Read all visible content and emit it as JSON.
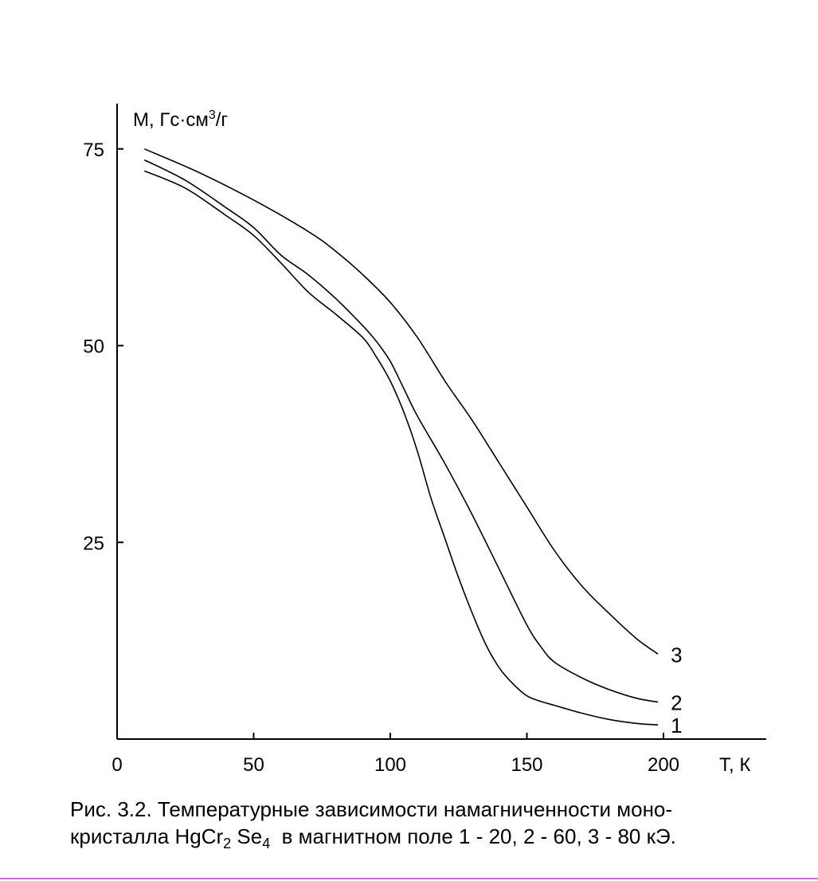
{
  "chart_data": {
    "type": "line",
    "ylabel_prefix": "M, Гс·см",
    "ylabel_exp": "3",
    "ylabel_suffix": "/г",
    "xlabel": "T, К",
    "xlim": [
      0,
      237
    ],
    "ylim": [
      0,
      80
    ],
    "x_ticks": [
      0,
      50,
      100,
      150,
      200
    ],
    "y_ticks": [
      25,
      50,
      75
    ],
    "series": [
      {
        "name": "1",
        "x": [
          10,
          25,
          40,
          50,
          60,
          70,
          80,
          90,
          95,
          100,
          105,
          110,
          115,
          120,
          125,
          130,
          135,
          140,
          145,
          150,
          155,
          160,
          170,
          180,
          190,
          198
        ],
        "y": [
          72.2,
          70.0,
          66.5,
          64.0,
          60.5,
          56.8,
          54.0,
          51.0,
          48.5,
          45.5,
          41.5,
          36.5,
          30.5,
          25.5,
          20.5,
          16.0,
          12.0,
          9.0,
          7.0,
          5.5,
          4.8,
          4.3,
          3.3,
          2.5,
          2.0,
          1.8
        ]
      },
      {
        "name": "2",
        "x": [
          10,
          25,
          40,
          50,
          60,
          70,
          80,
          90,
          95,
          100,
          105,
          110,
          120,
          130,
          140,
          150,
          155,
          160,
          170,
          180,
          190,
          198
        ],
        "y": [
          73.6,
          71.0,
          67.5,
          65.0,
          61.5,
          59.0,
          56.0,
          52.5,
          50.5,
          48.0,
          44.5,
          41.0,
          35.0,
          28.5,
          21.5,
          14.5,
          11.8,
          9.8,
          7.8,
          6.3,
          5.2,
          4.7
        ]
      },
      {
        "name": "3",
        "x": [
          10,
          30,
          50,
          70,
          80,
          90,
          100,
          110,
          120,
          130,
          140,
          150,
          160,
          170,
          180,
          190,
          198
        ],
        "y": [
          75.0,
          72.0,
          68.5,
          64.5,
          62.0,
          59.0,
          55.5,
          51.0,
          45.5,
          40.5,
          35.0,
          29.5,
          24.0,
          19.5,
          16.0,
          12.8,
          10.8
        ]
      }
    ]
  },
  "caption": {
    "line1": "Рис. 3.2. Температурные зависимости намагниченности моно-",
    "line2_a": "кристалла HgCr",
    "line2_sub1": "2",
    "line2_b": " Se",
    "line2_sub2": "4",
    "line2_c": "  в магнитном поле 1 - 20, 2 - 60, 3 - 80 кЭ."
  }
}
